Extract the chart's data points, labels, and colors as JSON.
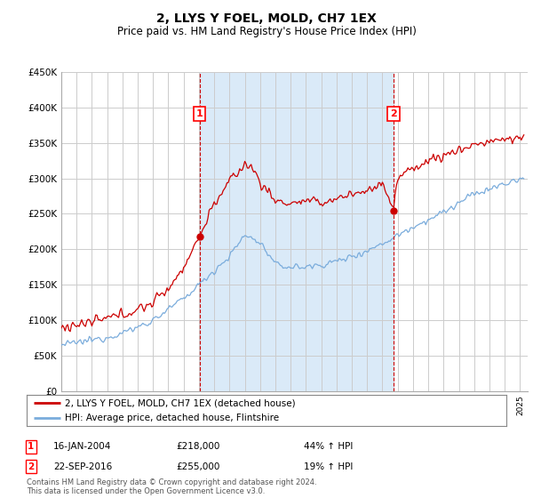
{
  "title": "2, LLYS Y FOEL, MOLD, CH7 1EX",
  "subtitle": "Price paid vs. HM Land Registry's House Price Index (HPI)",
  "ylabel_ticks": [
    "£0",
    "£50K",
    "£100K",
    "£150K",
    "£200K",
    "£250K",
    "£300K",
    "£350K",
    "£400K",
    "£450K"
  ],
  "y_values": [
    0,
    50000,
    100000,
    150000,
    200000,
    250000,
    300000,
    350000,
    400000,
    450000
  ],
  "ylim": [
    0,
    450000
  ],
  "xlim_start": 1995.0,
  "xlim_end": 2025.5,
  "sale1_x": 2004.04,
  "sale1_y": 218000,
  "sale2_x": 2016.73,
  "sale2_y": 255000,
  "sale1_label": "1",
  "sale2_label": "2",
  "sale1_date": "16-JAN-2004",
  "sale1_price": "£218,000",
  "sale1_hpi": "44% ↑ HPI",
  "sale2_date": "22-SEP-2016",
  "sale2_price": "£255,000",
  "sale2_hpi": "19% ↑ HPI",
  "legend_line1": "2, LLYS Y FOEL, MOLD, CH7 1EX (detached house)",
  "legend_line2": "HPI: Average price, detached house, Flintshire",
  "footnote": "Contains HM Land Registry data © Crown copyright and database right 2024.\nThis data is licensed under the Open Government Licence v3.0.",
  "line_color_red": "#cc0000",
  "line_color_blue": "#7aacdc",
  "vline_color": "#cc0000",
  "grid_color": "#cccccc",
  "shade_color": "#daeaf8",
  "bg_outside": "#ffffff",
  "title_fontsize": 11,
  "subtitle_fontsize": 9
}
